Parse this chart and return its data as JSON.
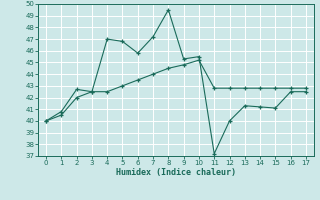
{
  "xlabel": "Humidex (Indice chaleur)",
  "x": [
    0,
    1,
    2,
    3,
    4,
    5,
    6,
    7,
    8,
    9,
    10,
    11,
    12,
    13,
    14,
    15,
    16,
    17
  ],
  "y_curve": [
    40,
    40.5,
    42,
    42.5,
    47,
    46.8,
    45.8,
    47.2,
    49.5,
    45.3,
    45.5,
    37.2,
    40,
    41.3,
    41.2,
    41.1,
    42.5,
    42.5
  ],
  "y_line": [
    40,
    40.8,
    42.7,
    42.5,
    42.5,
    43.0,
    43.5,
    44.0,
    44.5,
    44.8,
    45.2,
    42.8,
    42.8,
    42.8,
    42.8,
    42.8,
    42.8,
    42.8
  ],
  "ylim": [
    37,
    50
  ],
  "xlim": [
    -0.5,
    17.5
  ],
  "yticks": [
    37,
    38,
    39,
    40,
    41,
    42,
    43,
    44,
    45,
    46,
    47,
    48,
    49,
    50
  ],
  "xticks": [
    0,
    1,
    2,
    3,
    4,
    5,
    6,
    7,
    8,
    9,
    10,
    11,
    12,
    13,
    14,
    15,
    16,
    17
  ],
  "line_color": "#1a6b5a",
  "bg_color": "#cde8e8",
  "grid_color": "#ffffff"
}
